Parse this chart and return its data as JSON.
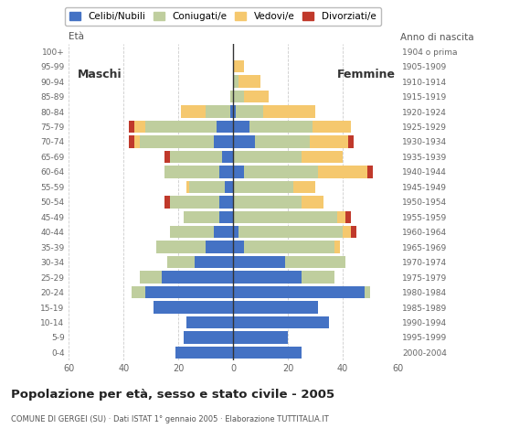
{
  "age_groups": [
    "0-4",
    "5-9",
    "10-14",
    "15-19",
    "20-24",
    "25-29",
    "30-34",
    "35-39",
    "40-44",
    "45-49",
    "50-54",
    "55-59",
    "60-64",
    "65-69",
    "70-74",
    "75-79",
    "80-84",
    "85-89",
    "90-94",
    "95-99",
    "100+"
  ],
  "birth_years": [
    "2000-2004",
    "1995-1999",
    "1990-1994",
    "1985-1989",
    "1980-1984",
    "1975-1979",
    "1970-1974",
    "1965-1969",
    "1960-1964",
    "1955-1959",
    "1950-1954",
    "1945-1949",
    "1940-1944",
    "1935-1939",
    "1930-1934",
    "1925-1929",
    "1920-1924",
    "1915-1919",
    "1910-1914",
    "1905-1909",
    "1904 o prima"
  ],
  "males": {
    "celibe": [
      21,
      18,
      17,
      29,
      32,
      26,
      14,
      10,
      7,
      5,
      5,
      3,
      5,
      4,
      7,
      6,
      1,
      0,
      0,
      0,
      0
    ],
    "coniugato": [
      0,
      0,
      0,
      0,
      5,
      8,
      10,
      18,
      16,
      13,
      18,
      13,
      20,
      19,
      27,
      26,
      9,
      1,
      0,
      0,
      0
    ],
    "vedovo": [
      0,
      0,
      0,
      0,
      0,
      0,
      0,
      0,
      0,
      0,
      0,
      1,
      0,
      0,
      2,
      4,
      9,
      0,
      0,
      0,
      0
    ],
    "divorziato": [
      0,
      0,
      0,
      0,
      0,
      0,
      0,
      0,
      0,
      0,
      2,
      0,
      0,
      2,
      2,
      2,
      0,
      0,
      0,
      0,
      0
    ]
  },
  "females": {
    "nubile": [
      25,
      20,
      35,
      31,
      48,
      25,
      19,
      4,
      2,
      0,
      0,
      0,
      4,
      0,
      8,
      6,
      1,
      0,
      0,
      0,
      0
    ],
    "coniugata": [
      0,
      0,
      0,
      0,
      2,
      12,
      22,
      33,
      38,
      38,
      25,
      22,
      27,
      25,
      20,
      23,
      10,
      4,
      2,
      0,
      0
    ],
    "vedova": [
      0,
      0,
      0,
      0,
      0,
      0,
      0,
      2,
      3,
      3,
      8,
      8,
      18,
      15,
      14,
      14,
      19,
      9,
      8,
      4,
      0
    ],
    "divorziata": [
      0,
      0,
      0,
      0,
      0,
      0,
      0,
      0,
      2,
      2,
      0,
      0,
      2,
      0,
      2,
      0,
      0,
      0,
      0,
      0,
      0
    ]
  },
  "colors": {
    "celibe": "#4472C4",
    "coniugato": "#BFCE9E",
    "vedovo": "#F5C86E",
    "divorziato": "#C0392B"
  },
  "title": "Popolazione per età, sesso e stato civile - 2005",
  "subtitle": "COMUNE DI GERGEI (SU) · Dati ISTAT 1° gennaio 2005 · Elaborazione TUTTITALIA.IT",
  "xlabel_left": "Maschi",
  "xlabel_right": "Femmine",
  "ylabel_left": "Età",
  "ylabel_right": "Anno di nascita",
  "xlim": 60,
  "background_color": "#FFFFFF",
  "legend_labels": [
    "Celibi/Nubili",
    "Coniugati/e",
    "Vedovi/e",
    "Divorziati/e"
  ]
}
